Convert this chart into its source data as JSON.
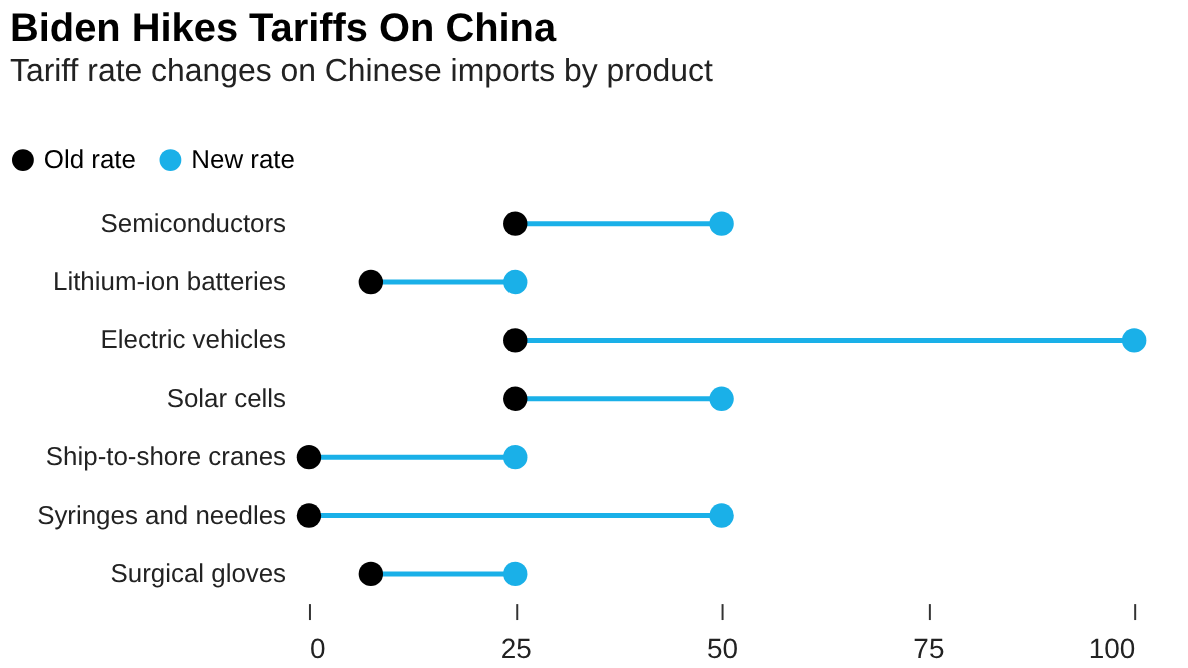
{
  "chart_data": {
    "type": "scatter",
    "orientation": "horizontal",
    "title": "Biden Hikes Tariffs On China",
    "subtitle": "Tariff rate changes on Chinese imports by product",
    "categories": [
      "Semiconductors",
      "Lithium-ion batteries",
      "Electric vehicles",
      "Solar cells",
      "Ship-to-shore cranes",
      "Syringes and needles",
      "Surgical gloves"
    ],
    "series": [
      {
        "name": "Old rate",
        "color": "#000000",
        "values": [
          25,
          7.5,
          25,
          25,
          0,
          0,
          7.5
        ]
      },
      {
        "name": "New rate",
        "color": "#1ab0e8",
        "values": [
          50,
          25,
          100,
          50,
          25,
          50,
          25
        ]
      }
    ],
    "xlim": [
      0,
      100
    ],
    "xticks": [
      0,
      25,
      50,
      75,
      100
    ],
    "grid": false,
    "legend": "top left",
    "marker": "circle"
  }
}
